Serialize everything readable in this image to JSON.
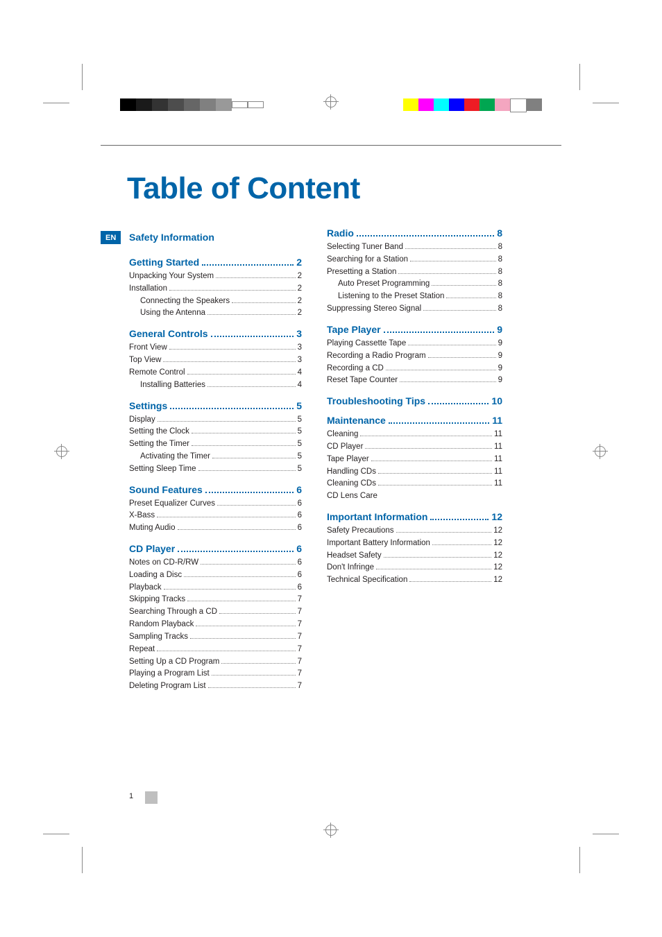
{
  "language_badge": "EN",
  "title": "Table of Content",
  "safety_information_header": "Safety Information",
  "page_number": "1",
  "col_left": {
    "sections": [
      {
        "header": "Getting Started",
        "page": "2",
        "items": [
          {
            "label": "Unpacking Your System",
            "page": "2",
            "indent": 0
          },
          {
            "label": "Installation",
            "page": "2",
            "indent": 0
          },
          {
            "label": "Connecting the Speakers",
            "page": "2",
            "indent": 1
          },
          {
            "label": "Using the Antenna",
            "page": "2",
            "indent": 1
          }
        ]
      },
      {
        "header": "General Controls",
        "page": "3",
        "items": [
          {
            "label": "Front View",
            "page": "3",
            "indent": 0
          },
          {
            "label": "Top View",
            "page": "3",
            "indent": 0
          },
          {
            "label": "Remote Control",
            "page": "4",
            "indent": 0
          },
          {
            "label": "Installing Batteries",
            "page": "4",
            "indent": 1
          }
        ]
      },
      {
        "header": "Settings",
        "page": "5",
        "items": [
          {
            "label": "Display",
            "page": "5",
            "indent": 0
          },
          {
            "label": "Setting the Clock",
            "page": "5",
            "indent": 0
          },
          {
            "label": "Setting the Timer",
            "page": "5",
            "indent": 0
          },
          {
            "label": "Activating the Timer",
            "page": "5",
            "indent": 1
          },
          {
            "label": "Setting Sleep Time",
            "page": "5",
            "indent": 0
          }
        ]
      },
      {
        "header": "Sound Features",
        "page": "6",
        "items": [
          {
            "label": "Preset Equalizer Curves",
            "page": "6",
            "indent": 0
          },
          {
            "label": "X-Bass",
            "page": "6",
            "indent": 0
          },
          {
            "label": "Muting Audio",
            "page": "6",
            "indent": 0
          }
        ]
      },
      {
        "header": "CD Player",
        "page": "6",
        "items": [
          {
            "label": "Notes on CD-R/RW",
            "page": "6",
            "indent": 0
          },
          {
            "label": "Loading a Disc",
            "page": "6",
            "indent": 0
          },
          {
            "label": "Playback",
            "page": "6",
            "indent": 0
          },
          {
            "label": "Skipping Tracks",
            "page": "7",
            "indent": 0
          },
          {
            "label": "Searching Through a CD",
            "page": "7",
            "indent": 0
          },
          {
            "label": "Random Playback",
            "page": "7",
            "indent": 0
          },
          {
            "label": "Sampling Tracks",
            "page": "7",
            "indent": 0
          },
          {
            "label": "Repeat",
            "page": "7",
            "indent": 0
          },
          {
            "label": "Setting Up a CD Program",
            "page": "7",
            "indent": 0
          },
          {
            "label": "Playing a Program List",
            "page": "7",
            "indent": 0
          },
          {
            "label": "Deleting Program List",
            "page": "7",
            "indent": 0
          }
        ]
      }
    ]
  },
  "col_right": {
    "sections": [
      {
        "header": "Radio",
        "page": "8",
        "items": [
          {
            "label": "Selecting Tuner Band",
            "page": "8",
            "indent": 0
          },
          {
            "label": "Searching for a Station",
            "page": "8",
            "indent": 0
          },
          {
            "label": "Presetting a Station",
            "page": "8",
            "indent": 0
          },
          {
            "label": "Auto Preset Programming",
            "page": "8",
            "indent": 1
          },
          {
            "label": "Listening to the Preset Station",
            "page": "8",
            "indent": 1
          },
          {
            "label": "Suppressing Stereo Signal",
            "page": "8",
            "indent": 0
          }
        ]
      },
      {
        "header": "Tape Player",
        "page": "9",
        "items": [
          {
            "label": "Playing Cassette Tape",
            "page": "9",
            "indent": 0
          },
          {
            "label": "Recording a Radio Program",
            "page": "9",
            "indent": 0
          },
          {
            "label": "Recording a CD",
            "page": "9",
            "indent": 0
          },
          {
            "label": "Reset Tape Counter",
            "page": "9",
            "indent": 0
          }
        ]
      },
      {
        "header": "Troubleshooting Tips",
        "page": "10",
        "items": []
      },
      {
        "header": "Maintenance",
        "page": "11",
        "items": [
          {
            "label": "Cleaning",
            "page": "11",
            "indent": 0
          },
          {
            "label": "CD Player",
            "page": "11",
            "indent": 0
          },
          {
            "label": "Tape Player",
            "page": "11",
            "indent": 0
          },
          {
            "label": "Handling CDs",
            "page": "11",
            "indent": 0
          },
          {
            "label": "Cleaning CDs",
            "page": "11",
            "indent": 0
          },
          {
            "label": "CD Lens Care",
            "page": "",
            "indent": 0
          }
        ]
      },
      {
        "header": "Important Information",
        "page": "12",
        "items": [
          {
            "label": "Safety Precautions",
            "page": "12",
            "indent": 0
          },
          {
            "label": "Important Battery Information",
            "page": "12",
            "indent": 0
          },
          {
            "label": "Headset Safety",
            "page": "12",
            "indent": 0
          },
          {
            "label": "Don't Infringe",
            "page": "12",
            "indent": 0
          },
          {
            "label": "Technical Specification",
            "page": "12",
            "indent": 0
          }
        ]
      }
    ]
  },
  "colors": {
    "brand_blue": "#0064a8",
    "text": "#231f20",
    "crop_gray": "#888888",
    "page_square_gray": "#bfbfbf"
  },
  "top_bars": {
    "left_grays": [
      "#000000",
      "#1a1a1a",
      "#333333",
      "#4d4d4d",
      "#666666",
      "#808080",
      "#999999",
      "#b3b3b3",
      "#cccccc"
    ],
    "right_colors": [
      "#ffff00",
      "#ff00ff",
      "#00ffff",
      "#0000ff",
      "#ed1c24",
      "#00a651",
      "#f4a6c0",
      "#ffffff",
      "#808080"
    ]
  }
}
